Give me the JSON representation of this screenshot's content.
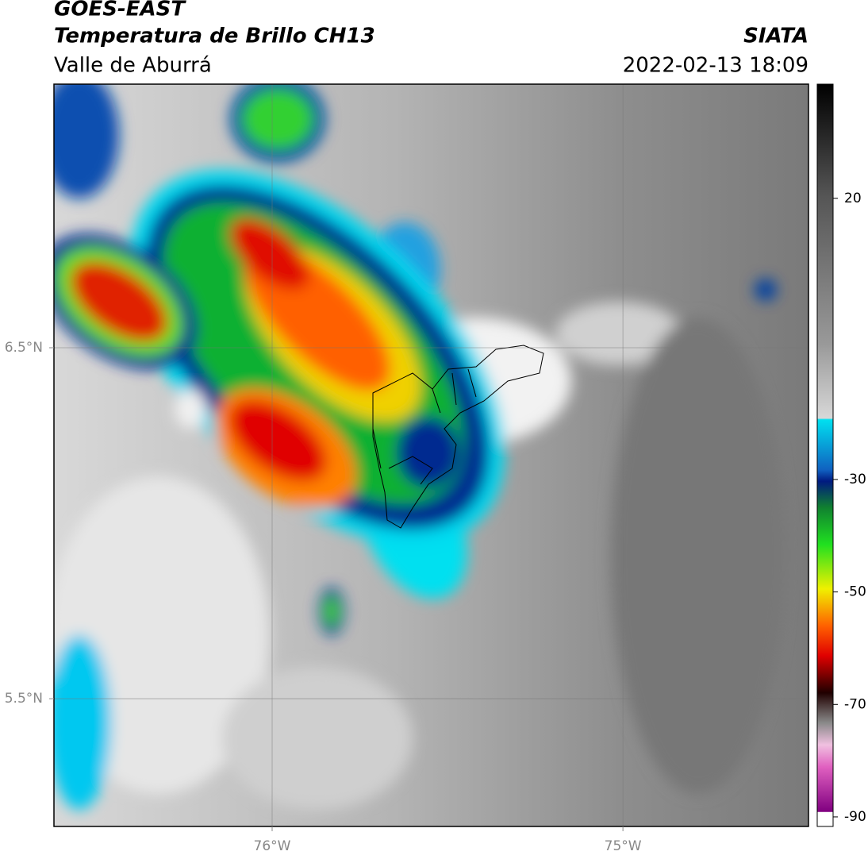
{
  "header": {
    "title": "GOES-EAST",
    "subtitle": "Temperatura de Brillo CH13",
    "region": "Valle de Aburrá",
    "source": "SIATA",
    "datetime": "2022-02-13 18:09"
  },
  "map": {
    "lon_range": [
      -76.622,
      -74.471
    ],
    "lat_range": [
      5.136,
      7.251
    ],
    "lon_ticks": [
      {
        "value": -76,
        "label": "76°W"
      },
      {
        "value": -75,
        "label": "75°W"
      }
    ],
    "lat_ticks": [
      {
        "value": 6.5,
        "label": "6.5°N"
      },
      {
        "value": 5.5,
        "label": "5.5°N"
      }
    ],
    "grid": true
  },
  "colorbar": {
    "lim": [
      -91.7,
      40.3
    ],
    "ticks": [
      20,
      -30,
      -50,
      -70,
      -90
    ]
  }
}
